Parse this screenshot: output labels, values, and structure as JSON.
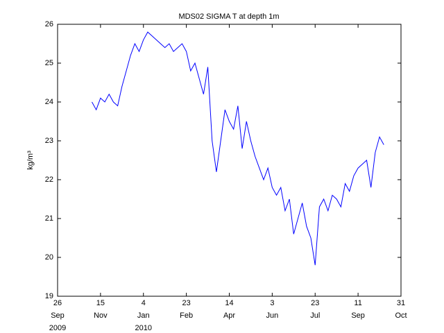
{
  "chart_data": {
    "type": "line",
    "title": "MDS02 SIGMA T at depth 1m",
    "y_label": "kg/m³",
    "xlim": [
      "2009-09-26",
      "2010-10-31"
    ],
    "xticks": [
      {
        "value": "2009-09-26",
        "label": [
          "26",
          "Sep",
          "2009"
        ]
      },
      {
        "value": "2009-11-15",
        "label": [
          "15",
          "Nov"
        ]
      },
      {
        "value": "2010-01-04",
        "label": [
          "4",
          "Jan",
          "2010"
        ]
      },
      {
        "value": "2010-02-23",
        "label": [
          "23",
          "Feb"
        ]
      },
      {
        "value": "2010-04-14",
        "label": [
          "14",
          "Apr"
        ]
      },
      {
        "value": "2010-06-03",
        "label": [
          "3",
          "Jun"
        ]
      },
      {
        "value": "2010-07-23",
        "label": [
          "23",
          "Jul"
        ]
      },
      {
        "value": "2010-09-11",
        "label": [
          "11",
          "Sep"
        ]
      },
      {
        "value": "2010-10-31",
        "label": [
          "31",
          "Oct"
        ]
      }
    ],
    "ylim": [
      19,
      26
    ],
    "yticks": [
      19,
      20,
      21,
      22,
      23,
      24,
      25,
      26
    ],
    "grid": false,
    "series": [
      {
        "name": "SIGMA T",
        "color": "#0000ff",
        "x": [
          "2009-11-05",
          "2009-11-10",
          "2009-11-15",
          "2009-11-20",
          "2009-11-25",
          "2009-11-30",
          "2009-12-05",
          "2009-12-10",
          "2009-12-15",
          "2009-12-20",
          "2009-12-25",
          "2009-12-30",
          "2010-01-04",
          "2010-01-09",
          "2010-01-14",
          "2010-01-19",
          "2010-01-24",
          "2010-01-29",
          "2010-02-03",
          "2010-02-08",
          "2010-02-13",
          "2010-02-18",
          "2010-02-23",
          "2010-02-28",
          "2010-03-05",
          "2010-03-10",
          "2010-03-15",
          "2010-03-20",
          "2010-03-25",
          "2010-03-30",
          "2010-04-04",
          "2010-04-09",
          "2010-04-14",
          "2010-04-19",
          "2010-04-24",
          "2010-04-29",
          "2010-05-04",
          "2010-05-09",
          "2010-05-14",
          "2010-05-19",
          "2010-05-24",
          "2010-05-29",
          "2010-06-03",
          "2010-06-08",
          "2010-06-13",
          "2010-06-18",
          "2010-06-23",
          "2010-06-28",
          "2010-07-03",
          "2010-07-08",
          "2010-07-13",
          "2010-07-18",
          "2010-07-23",
          "2010-07-28",
          "2010-08-02",
          "2010-08-07",
          "2010-08-12",
          "2010-08-17",
          "2010-08-22",
          "2010-08-27",
          "2010-09-01",
          "2010-09-06",
          "2010-09-11",
          "2010-09-16",
          "2010-09-21",
          "2010-09-26",
          "2010-10-01",
          "2010-10-06",
          "2010-10-11"
        ],
        "values": [
          24.0,
          23.8,
          24.1,
          24.0,
          24.2,
          24.0,
          23.9,
          24.4,
          24.8,
          25.2,
          25.5,
          25.3,
          25.6,
          25.8,
          25.7,
          25.6,
          25.5,
          25.4,
          25.5,
          25.3,
          25.4,
          25.5,
          25.3,
          24.8,
          25.0,
          24.6,
          24.2,
          24.9,
          23.0,
          22.2,
          23.0,
          23.8,
          23.5,
          23.3,
          23.9,
          22.8,
          23.5,
          23.0,
          22.6,
          22.3,
          22.0,
          22.3,
          21.8,
          21.6,
          21.8,
          21.2,
          21.5,
          20.6,
          21.0,
          21.4,
          20.8,
          20.5,
          19.8,
          21.3,
          21.5,
          21.2,
          21.6,
          21.5,
          21.3,
          21.9,
          21.7,
          22.1,
          22.3,
          22.4,
          22.5,
          21.8,
          22.7,
          23.1,
          22.9
        ]
      }
    ]
  }
}
